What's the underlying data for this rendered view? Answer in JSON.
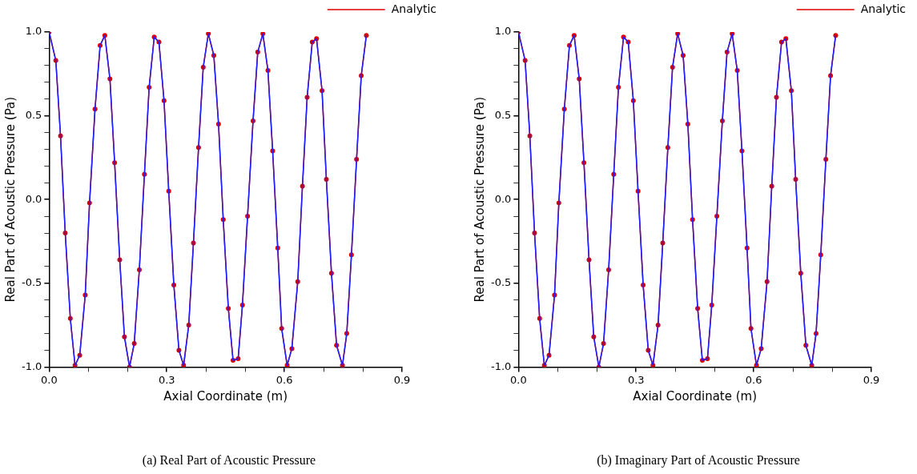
{
  "chart_data": [
    {
      "type": "line",
      "xlabel": "Axial Coordinate (m)",
      "ylabel": "Real Part of Acoustic Pressure (Pa)",
      "annotations": [
        "(a) Real Part of Acoustic Pressure"
      ],
      "x": [
        0,
        0.017,
        0.029,
        0.041,
        0.054,
        0.066,
        0.078,
        0.092,
        0.103,
        0.117,
        0.13,
        0.142,
        0.155,
        0.167,
        0.18,
        0.192,
        0.205,
        0.217,
        0.23,
        0.243,
        0.255,
        0.268,
        0.28,
        0.293,
        0.305,
        0.318,
        0.331,
        0.343,
        0.356,
        0.368,
        0.381,
        0.393,
        0.406,
        0.42,
        0.432,
        0.444,
        0.457,
        0.469,
        0.482,
        0.493,
        0.506,
        0.52,
        0.532,
        0.545,
        0.558,
        0.57,
        0.583,
        0.593,
        0.607,
        0.619,
        0.634,
        0.646,
        0.658,
        0.671,
        0.682,
        0.696,
        0.707,
        0.72,
        0.733,
        0.748,
        0.759,
        0.771,
        0.784,
        0.796,
        0.809
      ],
      "series": [
        {
          "name": "Analytic",
          "color": "#e00000",
          "marker": "circle",
          "line_style": "solid",
          "values": [
            1.0,
            0.83,
            0.38,
            -0.2,
            -0.71,
            -0.99,
            -0.93,
            -0.57,
            -0.02,
            0.54,
            0.92,
            0.98,
            0.72,
            0.22,
            -0.36,
            -0.82,
            -1.0,
            -0.86,
            -0.42,
            0.15,
            0.67,
            0.97,
            0.94,
            0.59,
            0.05,
            -0.51,
            -0.9,
            -0.99,
            -0.75,
            -0.26,
            0.31,
            0.79,
            0.99,
            0.86,
            0.45,
            -0.12,
            -0.65,
            -0.96,
            -0.95,
            -0.63,
            -0.1,
            0.47,
            0.88,
            0.99,
            0.77,
            0.29,
            -0.29,
            -0.77,
            -0.99,
            -0.89,
            -0.49,
            0.08,
            0.61,
            0.94,
            0.96,
            0.65,
            0.12,
            -0.44,
            -0.87,
            -0.99,
            -0.8,
            -0.33,
            0.24,
            0.74,
            0.98
          ]
        },
        {
          "color": "#2020ff",
          "marker": "none",
          "line_style": "solid",
          "values": [
            1.0,
            0.83,
            0.38,
            -0.2,
            -0.71,
            -0.99,
            -0.93,
            -0.57,
            -0.02,
            0.54,
            0.92,
            0.98,
            0.72,
            0.22,
            -0.36,
            -0.82,
            -1.0,
            -0.86,
            -0.42,
            0.15,
            0.67,
            0.97,
            0.94,
            0.59,
            0.05,
            -0.51,
            -0.9,
            -0.99,
            -0.75,
            -0.26,
            0.31,
            0.79,
            0.99,
            0.86,
            0.45,
            -0.12,
            -0.65,
            -0.96,
            -0.95,
            -0.63,
            -0.1,
            0.47,
            0.88,
            0.99,
            0.77,
            0.29,
            -0.29,
            -0.77,
            -0.99,
            -0.89,
            -0.49,
            0.08,
            0.61,
            0.94,
            0.96,
            0.65,
            0.12,
            -0.44,
            -0.87,
            -0.99,
            -0.8,
            -0.33,
            0.24,
            0.74,
            0.98
          ]
        }
      ],
      "xlim": [
        0,
        0.9
      ],
      "xticks": [
        {
          "value": 0,
          "label": "0.0"
        },
        {
          "value": 0.1,
          "label": null
        },
        {
          "value": 0.2,
          "label": null
        },
        {
          "value": 0.3,
          "label": "0.3"
        },
        {
          "value": 0.4,
          "label": null
        },
        {
          "value": 0.5,
          "label": null
        },
        {
          "value": 0.6,
          "label": "0.6"
        },
        {
          "value": 0.7,
          "label": null
        },
        {
          "value": 0.8,
          "label": null
        },
        {
          "value": 0.9,
          "label": "0.9"
        }
      ],
      "ylim": [
        -1,
        1
      ],
      "yticks": [
        {
          "value": -1,
          "label": "-1.0"
        },
        {
          "value": -0.9,
          "label": null
        },
        {
          "value": -0.8,
          "label": null
        },
        {
          "value": -0.7,
          "label": null
        },
        {
          "value": -0.6,
          "label": null
        },
        {
          "value": -0.5,
          "label": "-0.5"
        },
        {
          "value": -0.4,
          "label": null
        },
        {
          "value": -0.3,
          "label": null
        },
        {
          "value": -0.2,
          "label": null
        },
        {
          "value": -0.1,
          "label": null
        },
        {
          "value": 0,
          "label": "0.0"
        },
        {
          "value": 0.1,
          "label": null
        },
        {
          "value": 0.2,
          "label": null
        },
        {
          "value": 0.3,
          "label": null
        },
        {
          "value": 0.4,
          "label": null
        },
        {
          "value": 0.5,
          "label": "0.5"
        },
        {
          "value": 0.6,
          "label": null
        },
        {
          "value": 0.7,
          "label": null
        },
        {
          "value": 0.8,
          "label": null
        },
        {
          "value": 0.9,
          "label": null
        },
        {
          "value": 1,
          "label": "1.0"
        }
      ],
      "grid": false,
      "legend": "top right"
    },
    {
      "type": "line",
      "xlabel": "Axial Coordinate (m)",
      "ylabel": "Real Part of Acoustic Pressure (Pa)",
      "annotations": [
        "(b) Imaginary Part of Acoustic Pressure"
      ],
      "x": [
        0,
        0.017,
        0.029,
        0.041,
        0.054,
        0.066,
        0.078,
        0.092,
        0.103,
        0.117,
        0.13,
        0.142,
        0.155,
        0.167,
        0.18,
        0.192,
        0.205,
        0.217,
        0.23,
        0.243,
        0.255,
        0.268,
        0.28,
        0.293,
        0.305,
        0.318,
        0.331,
        0.343,
        0.356,
        0.368,
        0.381,
        0.393,
        0.406,
        0.42,
        0.432,
        0.444,
        0.457,
        0.469,
        0.482,
        0.493,
        0.506,
        0.52,
        0.532,
        0.545,
        0.558,
        0.57,
        0.583,
        0.593,
        0.607,
        0.619,
        0.634,
        0.646,
        0.658,
        0.671,
        0.682,
        0.696,
        0.707,
        0.72,
        0.733,
        0.748,
        0.759,
        0.771,
        0.784,
        0.796,
        0.809
      ],
      "series": [
        {
          "name": "Analytic",
          "color": "#e00000",
          "marker": "circle",
          "line_style": "solid",
          "values": [
            1.0,
            0.83,
            0.38,
            -0.2,
            -0.71,
            -0.99,
            -0.93,
            -0.57,
            -0.02,
            0.54,
            0.92,
            0.98,
            0.72,
            0.22,
            -0.36,
            -0.82,
            -1.0,
            -0.86,
            -0.42,
            0.15,
            0.67,
            0.97,
            0.94,
            0.59,
            0.05,
            -0.51,
            -0.9,
            -0.99,
            -0.75,
            -0.26,
            0.31,
            0.79,
            0.99,
            0.86,
            0.45,
            -0.12,
            -0.65,
            -0.96,
            -0.95,
            -0.63,
            -0.1,
            0.47,
            0.88,
            0.99,
            0.77,
            0.29,
            -0.29,
            -0.77,
            -0.99,
            -0.89,
            -0.49,
            0.08,
            0.61,
            0.94,
            0.96,
            0.65,
            0.12,
            -0.44,
            -0.87,
            -0.99,
            -0.8,
            -0.33,
            0.24,
            0.74,
            0.98
          ]
        },
        {
          "color": "#2020ff",
          "marker": "none",
          "line_style": "solid",
          "values": [
            1.0,
            0.83,
            0.38,
            -0.2,
            -0.71,
            -0.99,
            -0.93,
            -0.57,
            -0.02,
            0.54,
            0.92,
            0.98,
            0.72,
            0.22,
            -0.36,
            -0.82,
            -1.0,
            -0.86,
            -0.42,
            0.15,
            0.67,
            0.97,
            0.94,
            0.59,
            0.05,
            -0.51,
            -0.9,
            -0.99,
            -0.75,
            -0.26,
            0.31,
            0.79,
            0.99,
            0.86,
            0.45,
            -0.12,
            -0.65,
            -0.96,
            -0.95,
            -0.63,
            -0.1,
            0.47,
            0.88,
            0.99,
            0.77,
            0.29,
            -0.29,
            -0.77,
            -0.99,
            -0.89,
            -0.49,
            0.08,
            0.61,
            0.94,
            0.96,
            0.65,
            0.12,
            -0.44,
            -0.87,
            -0.99,
            -0.8,
            -0.33,
            0.24,
            0.74,
            0.98
          ]
        }
      ],
      "xlim": [
        0,
        0.9
      ],
      "xticks": [
        {
          "value": 0,
          "label": "0.0"
        },
        {
          "value": 0.1,
          "label": null
        },
        {
          "value": 0.2,
          "label": null
        },
        {
          "value": 0.3,
          "label": "0.3"
        },
        {
          "value": 0.4,
          "label": null
        },
        {
          "value": 0.5,
          "label": null
        },
        {
          "value": 0.6,
          "label": "0.6"
        },
        {
          "value": 0.7,
          "label": null
        },
        {
          "value": 0.8,
          "label": null
        },
        {
          "value": 0.9,
          "label": "0.9"
        }
      ],
      "ylim": [
        -1,
        1
      ],
      "yticks": [
        {
          "value": -1,
          "label": "-1.0"
        },
        {
          "value": -0.9,
          "label": null
        },
        {
          "value": -0.8,
          "label": null
        },
        {
          "value": -0.7,
          "label": null
        },
        {
          "value": -0.6,
          "label": null
        },
        {
          "value": -0.5,
          "label": "-0.5"
        },
        {
          "value": -0.4,
          "label": null
        },
        {
          "value": -0.3,
          "label": null
        },
        {
          "value": -0.2,
          "label": null
        },
        {
          "value": -0.1,
          "label": null
        },
        {
          "value": 0,
          "label": "0.0"
        },
        {
          "value": 0.1,
          "label": null
        },
        {
          "value": 0.2,
          "label": null
        },
        {
          "value": 0.3,
          "label": null
        },
        {
          "value": 0.4,
          "label": null
        },
        {
          "value": 0.5,
          "label": "0.5"
        },
        {
          "value": 0.6,
          "label": null
        },
        {
          "value": 0.7,
          "label": null
        },
        {
          "value": 0.8,
          "label": null
        },
        {
          "value": 0.9,
          "label": null
        },
        {
          "value": 1,
          "label": "1.0"
        }
      ],
      "grid": false,
      "legend": "top right"
    }
  ]
}
